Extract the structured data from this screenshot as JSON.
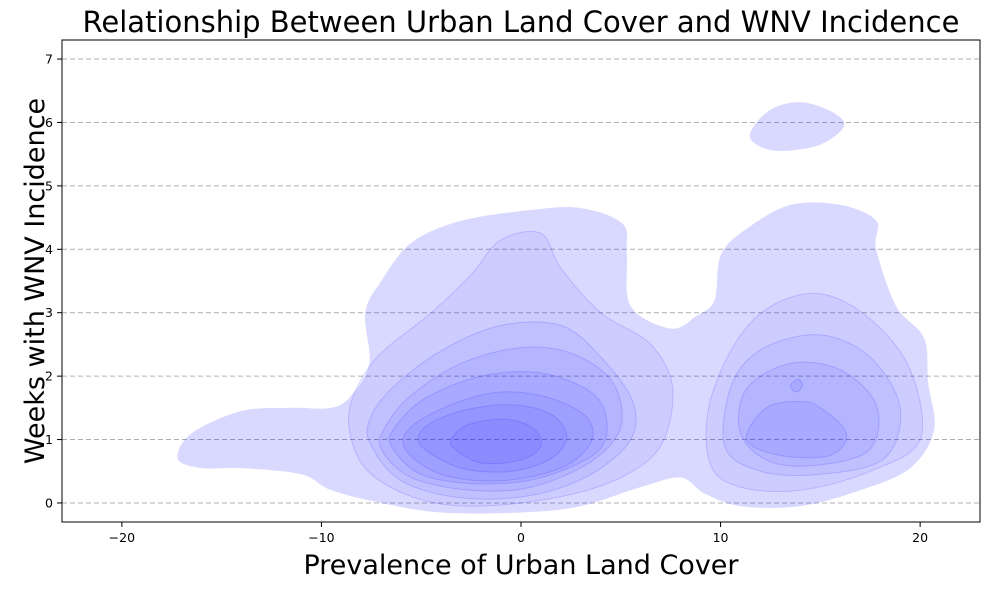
{
  "chart_data": {
    "type": "kde-density",
    "title": "Relationship Between Urban Land Cover and WNV Incidence",
    "xlabel": "Prevalence of Urban Land Cover",
    "ylabel": "Weeks with WNV Incidence",
    "xlim": [
      -23,
      23
    ],
    "ylim": [
      -0.3,
      7.3
    ],
    "xticks": [
      -20,
      -10,
      0,
      10,
      20
    ],
    "yticks": [
      0,
      1,
      2,
      3,
      4,
      5,
      6,
      7
    ],
    "grid": {
      "y": true,
      "x": false,
      "style": "dashed"
    },
    "fill_color": "#0000ff",
    "levels": [
      {
        "level": 1,
        "regions": [
          [
            [
              -17.2,
              0.7
            ],
            [
              -16,
              0.55
            ],
            [
              -14,
              0.55
            ],
            [
              -11,
              0.45
            ],
            [
              -9.5,
              0.2
            ],
            [
              -7,
              0
            ],
            [
              -4,
              -0.15
            ],
            [
              0,
              -0.15
            ],
            [
              3,
              -0.05
            ],
            [
              6,
              0.25
            ],
            [
              8,
              0.4
            ],
            [
              9.2,
              0.15
            ],
            [
              11,
              -0.05
            ],
            [
              14,
              -0.05
            ],
            [
              17,
              0.2
            ],
            [
              19.5,
              0.55
            ],
            [
              20.7,
              1.15
            ],
            [
              20.4,
              1.9
            ],
            [
              20.2,
              2.6
            ],
            [
              18.8,
              3.1
            ],
            [
              17.8,
              4.0
            ],
            [
              17.8,
              4.45
            ],
            [
              16,
              4.7
            ],
            [
              13.5,
              4.7
            ],
            [
              11.2,
              4.3
            ],
            [
              10,
              3.9
            ],
            [
              9.7,
              3.2
            ],
            [
              8.8,
              2.95
            ],
            [
              7.5,
              2.75
            ],
            [
              5.5,
              3.1
            ],
            [
              5.3,
              3.9
            ],
            [
              5.1,
              4.4
            ],
            [
              3,
              4.65
            ],
            [
              0.5,
              4.62
            ],
            [
              -3,
              4.45
            ],
            [
              -5.5,
              4.1
            ],
            [
              -7,
              3.5
            ],
            [
              -7.8,
              3.0
            ],
            [
              -7.6,
              2.2
            ],
            [
              -8.5,
              1.7
            ],
            [
              -9.5,
              1.5
            ],
            [
              -11.5,
              1.5
            ],
            [
              -14,
              1.45
            ],
            [
              -16.5,
              1.1
            ]
          ],
          [
            [
              11.5,
              5.85
            ],
            [
              12.5,
              6.2
            ],
            [
              14,
              6.32
            ],
            [
              15.5,
              6.18
            ],
            [
              16.2,
              5.95
            ],
            [
              15,
              5.65
            ],
            [
              13,
              5.55
            ],
            [
              11.8,
              5.65
            ]
          ]
        ]
      },
      {
        "level": 2,
        "regions": [
          [
            [
              -8.5,
              1.0
            ],
            [
              -7.5,
              0.45
            ],
            [
              -5,
              0.05
            ],
            [
              -2,
              -0.05
            ],
            [
              2,
              0.1
            ],
            [
              5,
              0.4
            ],
            [
              7,
              0.9
            ],
            [
              7.6,
              1.8
            ],
            [
              6.5,
              2.5
            ],
            [
              4,
              3.0
            ],
            [
              2,
              3.7
            ],
            [
              1,
              4.25
            ],
            [
              -1,
              4.15
            ],
            [
              -2.5,
              3.6
            ],
            [
              -4.5,
              3.0
            ],
            [
              -7.2,
              2.3
            ],
            [
              -8.5,
              1.6
            ]
          ],
          [
            [
              9.5,
              0.6
            ],
            [
              11,
              0.25
            ],
            [
              14,
              0.2
            ],
            [
              17.5,
              0.5
            ],
            [
              20,
              1.0
            ],
            [
              19.5,
              2.1
            ],
            [
              17.5,
              2.9
            ],
            [
              15,
              3.3
            ],
            [
              12.5,
              3.1
            ],
            [
              10.7,
              2.5
            ],
            [
              9.4,
              1.5
            ]
          ]
        ]
      },
      {
        "level": 3,
        "regions": [
          [
            [
              -7.5,
              0.9
            ],
            [
              -6,
              0.35
            ],
            [
              -3,
              0.08
            ],
            [
              0.5,
              0.12
            ],
            [
              3.5,
              0.45
            ],
            [
              5.5,
              1.0
            ],
            [
              5.6,
              1.6
            ],
            [
              4,
              2.3
            ],
            [
              2,
              2.8
            ],
            [
              -1,
              2.8
            ],
            [
              -4,
              2.4
            ],
            [
              -6.5,
              1.8
            ],
            [
              -7.6,
              1.3
            ]
          ],
          [
            [
              10.2,
              0.9
            ],
            [
              12,
              0.5
            ],
            [
              15,
              0.45
            ],
            [
              18.2,
              0.7
            ],
            [
              19,
              1.5
            ],
            [
              17.5,
              2.3
            ],
            [
              15,
              2.65
            ],
            [
              12.2,
              2.45
            ],
            [
              10.6,
              1.9
            ]
          ]
        ]
      },
      {
        "level": 4,
        "regions": [
          [
            [
              -7,
              0.85
            ],
            [
              -5.5,
              0.4
            ],
            [
              -2.5,
              0.2
            ],
            [
              0.5,
              0.25
            ],
            [
              3.5,
              0.65
            ],
            [
              5,
              1.2
            ],
            [
              4.6,
              1.9
            ],
            [
              2.6,
              2.35
            ],
            [
              0,
              2.45
            ],
            [
              -3,
              2.2
            ],
            [
              -5.5,
              1.7
            ],
            [
              -6.8,
              1.2
            ]
          ],
          [
            [
              11,
              1.1
            ],
            [
              12.5,
              0.65
            ],
            [
              15,
              0.6
            ],
            [
              17.5,
              0.85
            ],
            [
              17.8,
              1.55
            ],
            [
              16,
              2.1
            ],
            [
              13.5,
              2.2
            ],
            [
              11.3,
              1.8
            ]
          ]
        ]
      },
      {
        "level": 5,
        "regions": [
          [
            [
              -6.5,
              0.9
            ],
            [
              -5,
              0.45
            ],
            [
              -2,
              0.3
            ],
            [
              1,
              0.4
            ],
            [
              3.8,
              0.8
            ],
            [
              4.3,
              1.3
            ],
            [
              3.5,
              1.75
            ],
            [
              1,
              2.05
            ],
            [
              -2,
              2.0
            ],
            [
              -4.8,
              1.65
            ],
            [
              -6.3,
              1.2
            ]
          ],
          [
            [
              11.3,
              1.0
            ],
            [
              13,
              0.75
            ],
            [
              15.5,
              0.75
            ],
            [
              16.3,
              1.1
            ],
            [
              15,
              1.5
            ],
            [
              14,
              1.6
            ],
            [
              12.3,
              1.5
            ]
          ]
        ]
      },
      {
        "level": 6,
        "regions": [
          [
            [
              -5.8,
              0.85
            ],
            [
              -4,
              0.45
            ],
            [
              -1,
              0.35
            ],
            [
              2,
              0.55
            ],
            [
              3.5,
              0.95
            ],
            [
              3.3,
              1.35
            ],
            [
              1.5,
              1.65
            ],
            [
              -1,
              1.75
            ],
            [
              -3.5,
              1.55
            ],
            [
              -5.5,
              1.2
            ]
          ],
          [
            [
              13.5,
              1.85
            ],
            [
              13.9,
              1.95
            ],
            [
              14.1,
              1.85
            ],
            [
              13.8,
              1.75
            ]
          ]
        ]
      },
      {
        "level": 7,
        "regions": [
          [
            [
              -5,
              0.9
            ],
            [
              -3,
              0.55
            ],
            [
              -0.5,
              0.5
            ],
            [
              1.5,
              0.7
            ],
            [
              2.3,
              1.05
            ],
            [
              1.5,
              1.4
            ],
            [
              -0.5,
              1.55
            ],
            [
              -3,
              1.45
            ],
            [
              -4.8,
              1.2
            ]
          ]
        ]
      },
      {
        "level": 8,
        "regions": [
          [
            [
              -3.4,
              0.88
            ],
            [
              -2,
              0.63
            ],
            [
              0,
              0.68
            ],
            [
              1,
              0.9
            ],
            [
              0.6,
              1.18
            ],
            [
              -0.8,
              1.32
            ],
            [
              -2.6,
              1.24
            ],
            [
              -3.4,
              1.05
            ]
          ]
        ]
      }
    ]
  }
}
